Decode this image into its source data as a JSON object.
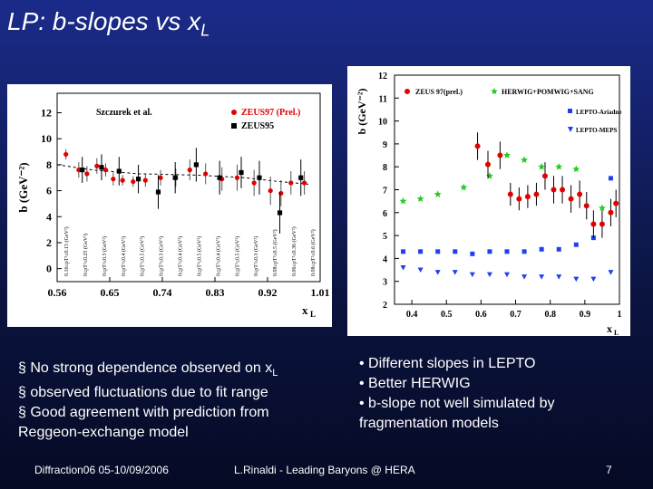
{
  "slide": {
    "title_prefix": "LP: b-slopes vs x",
    "title_sub": "L",
    "left_bullets": [
      "§ No strong dependence observed on x",
      "§ observed fluctuations due to fit range",
      "§ Good agreement with prediction from Reggeon-exchange model"
    ],
    "left_bullet_sub": "L",
    "right_bullets": [
      "• Different slopes in LEPTO",
      "• Better HERWIG",
      "• b-slope not well simulated by fragmentation models"
    ],
    "footer_left": "Diffraction06 05-10/09/2006",
    "footer_center": "L.Rinaldi - Leading Baryons @ HERA",
    "page_number": "7"
  },
  "chart_data": [
    {
      "type": "scatter",
      "ylabel": "b (GeV⁻²)",
      "xlabel": "x_L",
      "xlim": [
        0.56,
        1.01
      ],
      "ylim": [
        -1,
        13.5
      ],
      "xticks": [
        "0.56",
        "0.65",
        "0.74",
        "0.83",
        "0.92",
        "1.01"
      ],
      "yticks": [
        "0",
        "2",
        "4",
        "6",
        "8",
        "10",
        "12"
      ],
      "annotation": "Szczurek et al.",
      "legend": [
        "ZEUS97 (Prel.)",
        "ZEUS95"
      ],
      "series": [
        {
          "name": "ZEUS97 (Prel.)",
          "color": "#e00000",
          "x": [
            0.575,
            0.597,
            0.611,
            0.628,
            0.643,
            0.656,
            0.672,
            0.69,
            0.711,
            0.737,
            0.763,
            0.787,
            0.814,
            0.842,
            0.868,
            0.897,
            0.925,
            0.943,
            0.96,
            0.983
          ],
          "y": [
            8.8,
            7.6,
            7.3,
            7.9,
            7.6,
            6.9,
            6.8,
            6.7,
            6.8,
            7.0,
            7.0,
            7.6,
            7.3,
            6.9,
            7.0,
            6.6,
            6.0,
            5.8,
            6.6,
            6.6
          ],
          "err": [
            0.4,
            0.6,
            0.6,
            0.6,
            0.5,
            0.5,
            0.4,
            0.4,
            0.5,
            0.6,
            0.7,
            0.8,
            0.8,
            0.9,
            1.0,
            1.0,
            1.1,
            1.0,
            0.9,
            0.9
          ]
        },
        {
          "name": "ZEUS95",
          "color": "#000000",
          "x": [
            0.603,
            0.636,
            0.666,
            0.699,
            0.733,
            0.762,
            0.798,
            0.838,
            0.875,
            0.906,
            0.941,
            0.977
          ],
          "y": [
            7.6,
            7.8,
            7.5,
            6.9,
            5.9,
            7.0,
            8.0,
            7.0,
            7.4,
            7.0,
            4.3,
            7.0
          ],
          "err": [
            1.0,
            1.0,
            1.1,
            1.1,
            1.3,
            1.2,
            1.3,
            1.3,
            1.2,
            1.3,
            1.6,
            1.4
          ]
        },
        {
          "name": "Szczurek et al.",
          "style": "dashed",
          "x": [
            0.56,
            0.62,
            0.7,
            0.8,
            0.88,
            0.94,
            0.99
          ],
          "y": [
            8.0,
            7.6,
            7.3,
            7.2,
            7.0,
            6.7,
            6.5
          ]
        }
      ],
      "bin_labels": [
        "0.16≤pT²≤0.15 (GeV²)",
        "0≤pT²≤0.25 (GeV²)",
        "0≤pT²≤0.3 (GeV²)",
        "0≤pT²≤0.4 (GeV²)",
        "0≤pT²≤0.5 (GeV²)",
        "0≤pT²≤0.3 (GeV²)",
        "0≤pT²≤0.4 (GeV²)",
        "0≤pT²≤0.5 (GeV²)",
        "0≤pT²≤0.4 (GeV²)",
        "0≤pT²≤0.5 (GeV²)",
        "0≤pT²≤0.3 (GeV²)",
        "0.08≤pT²≤0.5 (GeV²)",
        "0.06≤pT²≤0.36 (GeV²)",
        "0.08≤pT²≤0.6 (GeV²)"
      ]
    },
    {
      "type": "scatter",
      "ylabel": "b (GeV⁻²)",
      "xlabel": "x_L",
      "xlim": [
        0.35,
        1.0
      ],
      "ylim": [
        2,
        12
      ],
      "xticks": [
        "0.4",
        "0.5",
        "0.6",
        "0.7",
        "0.8",
        "0.9",
        "1"
      ],
      "yticks": [
        "2",
        "3",
        "4",
        "5",
        "6",
        "7",
        "8",
        "9",
        "10",
        "11",
        "12"
      ],
      "legend": [
        "ZEUS 97(prel.)",
        "HERWIG+POMWIG+SANG",
        "LEPTO-Ariadne",
        "LEPTO-MEPS"
      ],
      "series": [
        {
          "name": "ZEUS 97(prel.)",
          "color": "#e00000",
          "x": [
            0.59,
            0.62,
            0.655,
            0.685,
            0.71,
            0.735,
            0.76,
            0.785,
            0.81,
            0.835,
            0.86,
            0.885,
            0.905,
            0.925,
            0.95,
            0.975,
            0.99
          ],
          "y": [
            8.9,
            8.1,
            8.5,
            6.8,
            6.6,
            6.7,
            6.8,
            7.6,
            7.0,
            7.0,
            6.6,
            6.8,
            6.3,
            5.5,
            5.5,
            6.0,
            6.4
          ],
          "err": [
            0.6,
            0.6,
            0.6,
            0.5,
            0.5,
            0.5,
            0.5,
            0.6,
            0.6,
            0.6,
            0.6,
            0.6,
            0.6,
            0.6,
            0.6,
            0.6,
            0.6
          ]
        },
        {
          "name": "HERWIG+POMWIG+SANG",
          "color": "#22cc22",
          "x": [
            0.375,
            0.425,
            0.475,
            0.55,
            0.625,
            0.675,
            0.725,
            0.775,
            0.825,
            0.875,
            0.95
          ],
          "y": [
            6.5,
            6.6,
            6.8,
            7.1,
            7.6,
            8.5,
            8.3,
            8.0,
            8.0,
            7.9,
            6.2
          ]
        },
        {
          "name": "LEPTO-Ariadne",
          "color": "#1f3ff0",
          "x": [
            0.375,
            0.425,
            0.475,
            0.525,
            0.575,
            0.625,
            0.675,
            0.725,
            0.775,
            0.825,
            0.875,
            0.925,
            0.975
          ],
          "y": [
            4.3,
            4.3,
            4.3,
            4.3,
            4.2,
            4.3,
            4.3,
            4.3,
            4.4,
            4.4,
            4.6,
            4.9,
            7.5
          ]
        },
        {
          "name": "LEPTO-MEPS",
          "color": "#1f3ff0",
          "x": [
            0.375,
            0.425,
            0.475,
            0.525,
            0.575,
            0.625,
            0.675,
            0.725,
            0.775,
            0.825,
            0.875,
            0.925,
            0.975
          ],
          "y": [
            3.6,
            3.5,
            3.4,
            3.4,
            3.3,
            3.3,
            3.3,
            3.2,
            3.2,
            3.2,
            3.1,
            3.1,
            3.4
          ]
        }
      ]
    }
  ]
}
